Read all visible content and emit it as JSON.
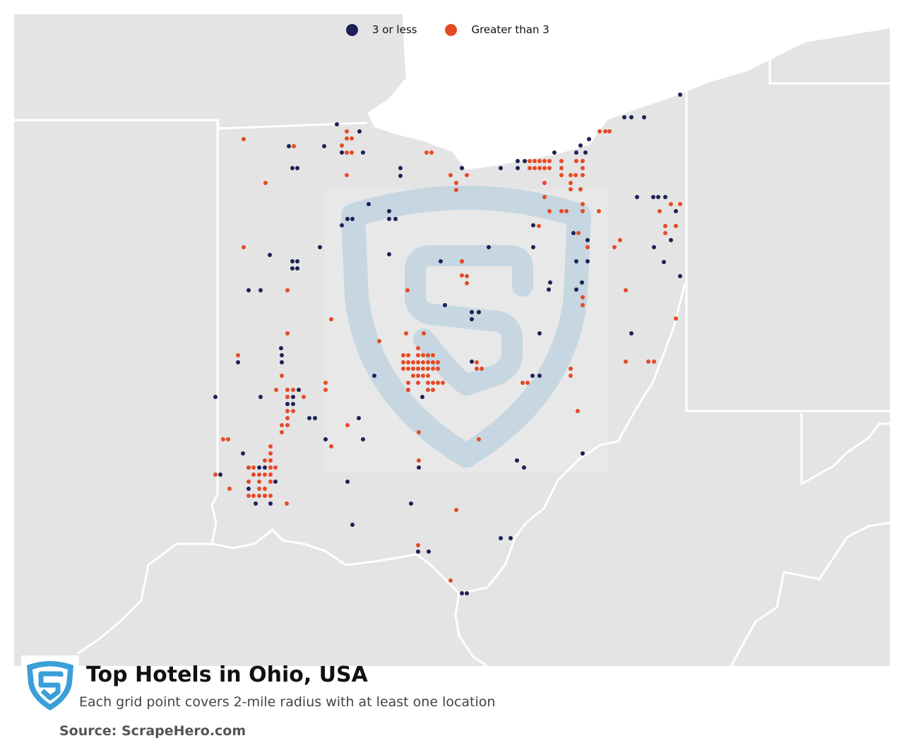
{
  "map": {
    "title": "Top Hotels in Ohio, USA",
    "subtitle": "Each grid point covers 2-mile radius with at least one location",
    "source": "Source: ScrapeHero.com"
  },
  "legend": [
    {
      "label": "3 or less",
      "color": "#1b2157"
    },
    {
      "label": "Greater than 3",
      "color": "#e64a25"
    }
  ],
  "colors": {
    "land": "#e4e4e4",
    "water": "#ffffff",
    "borders": "#ffffff",
    "watermark": "#a9c8dc",
    "logo": "#3a9fd8"
  },
  "icons": {
    "logo": "scrapehero-shield-icon",
    "watermark": "scrapehero-watermark-icon"
  },
  "points": {
    "low": [
      [
        409,
        207
      ],
      [
        459,
        207
      ],
      [
        477,
        176
      ],
      [
        509,
        186
      ],
      [
        514,
        216
      ],
      [
        484,
        216
      ],
      [
        414,
        238
      ],
      [
        421,
        238
      ],
      [
        567,
        238
      ],
      [
        567,
        249
      ],
      [
        654,
        238
      ],
      [
        709,
        238
      ],
      [
        733,
        238
      ],
      [
        743,
        228
      ],
      [
        733,
        228
      ],
      [
        785,
        216
      ],
      [
        816,
        216
      ],
      [
        829,
        216
      ],
      [
        822,
        206
      ],
      [
        834,
        197
      ],
      [
        884,
        166
      ],
      [
        894,
        166
      ],
      [
        912,
        166
      ],
      [
        963,
        134
      ],
      [
        522,
        289
      ],
      [
        484,
        319
      ],
      [
        492,
        310
      ],
      [
        499,
        310
      ],
      [
        551,
        299
      ],
      [
        551,
        310
      ],
      [
        560,
        310
      ],
      [
        902,
        279
      ],
      [
        925,
        279
      ],
      [
        932,
        279
      ],
      [
        942,
        279
      ],
      [
        957,
        299
      ],
      [
        950,
        340
      ],
      [
        926,
        350
      ],
      [
        940,
        371
      ],
      [
        963,
        391
      ],
      [
        382,
        361
      ],
      [
        414,
        370
      ],
      [
        421,
        370
      ],
      [
        414,
        380
      ],
      [
        421,
        380
      ],
      [
        453,
        350
      ],
      [
        551,
        360
      ],
      [
        624,
        370
      ],
      [
        654,
        370
      ],
      [
        692,
        350
      ],
      [
        755,
        350
      ],
      [
        755,
        319
      ],
      [
        812,
        330
      ],
      [
        832,
        340
      ],
      [
        832,
        370
      ],
      [
        816,
        370
      ],
      [
        824,
        400
      ],
      [
        816,
        410
      ],
      [
        779,
        400
      ],
      [
        777,
        410
      ],
      [
        630,
        432
      ],
      [
        668,
        442
      ],
      [
        678,
        442
      ],
      [
        668,
        452
      ],
      [
        764,
        472
      ],
      [
        894,
        472
      ],
      [
        352,
        411
      ],
      [
        369,
        411
      ],
      [
        398,
        493
      ],
      [
        399,
        503
      ],
      [
        399,
        513
      ],
      [
        337,
        513
      ],
      [
        369,
        562
      ],
      [
        423,
        552
      ],
      [
        415,
        562
      ],
      [
        407,
        572
      ],
      [
        415,
        572
      ],
      [
        438,
        592
      ],
      [
        446,
        592
      ],
      [
        305,
        562
      ],
      [
        530,
        532
      ],
      [
        578,
        552
      ],
      [
        598,
        562
      ],
      [
        668,
        512
      ],
      [
        754,
        532
      ],
      [
        764,
        532
      ],
      [
        508,
        592
      ],
      [
        514,
        622
      ],
      [
        461,
        622
      ],
      [
        344,
        642
      ],
      [
        352,
        662
      ],
      [
        367,
        662
      ],
      [
        375,
        662
      ],
      [
        312,
        672
      ],
      [
        352,
        692
      ],
      [
        390,
        682
      ],
      [
        375,
        702
      ],
      [
        383,
        713
      ],
      [
        492,
        682
      ],
      [
        582,
        713
      ],
      [
        732,
        652
      ],
      [
        742,
        662
      ],
      [
        825,
        642
      ],
      [
        593,
        662
      ],
      [
        499,
        743
      ],
      [
        709,
        762
      ],
      [
        723,
        762
      ],
      [
        592,
        781
      ],
      [
        607,
        781
      ],
      [
        654,
        840
      ],
      [
        661,
        840
      ],
      [
        362,
        713
      ]
    ],
    "high": [
      [
        345,
        197
      ],
      [
        416,
        207
      ],
      [
        491,
        186
      ],
      [
        491,
        196
      ],
      [
        498,
        196
      ],
      [
        484,
        206
      ],
      [
        491,
        216
      ],
      [
        498,
        216
      ],
      [
        491,
        248
      ],
      [
        376,
        259
      ],
      [
        604,
        216
      ],
      [
        611,
        216
      ],
      [
        638,
        248
      ],
      [
        646,
        259
      ],
      [
        646,
        269
      ],
      [
        661,
        248
      ],
      [
        750,
        228
      ],
      [
        757,
        228
      ],
      [
        764,
        228
      ],
      [
        771,
        228
      ],
      [
        778,
        228
      ],
      [
        750,
        238
      ],
      [
        757,
        238
      ],
      [
        764,
        238
      ],
      [
        771,
        238
      ],
      [
        778,
        238
      ],
      [
        795,
        228
      ],
      [
        795,
        238
      ],
      [
        795,
        248
      ],
      [
        808,
        248
      ],
      [
        815,
        248
      ],
      [
        825,
        248
      ],
      [
        816,
        228
      ],
      [
        825,
        228
      ],
      [
        825,
        238
      ],
      [
        808,
        259
      ],
      [
        771,
        259
      ],
      [
        822,
        268
      ],
      [
        808,
        268
      ],
      [
        771,
        279
      ],
      [
        778,
        299
      ],
      [
        795,
        299
      ],
      [
        802,
        299
      ],
      [
        825,
        289
      ],
      [
        825,
        299
      ],
      [
        848,
        299
      ],
      [
        857,
        186
      ],
      [
        849,
        186
      ],
      [
        863,
        186
      ],
      [
        934,
        299
      ],
      [
        950,
        289
      ],
      [
        963,
        289
      ],
      [
        942,
        320
      ],
      [
        957,
        320
      ],
      [
        942,
        330
      ],
      [
        878,
        340
      ],
      [
        870,
        350
      ],
      [
        832,
        350
      ],
      [
        819,
        330
      ],
      [
        763,
        320
      ],
      [
        345,
        350
      ],
      [
        407,
        411
      ],
      [
        577,
        411
      ],
      [
        654,
        370
      ],
      [
        661,
        391
      ],
      [
        661,
        401
      ],
      [
        825,
        421
      ],
      [
        825,
        432
      ],
      [
        886,
        411
      ],
      [
        469,
        452
      ],
      [
        407,
        472
      ],
      [
        575,
        472
      ],
      [
        600,
        472
      ],
      [
        537,
        483
      ],
      [
        592,
        493
      ],
      [
        337,
        503
      ],
      [
        571,
        503
      ],
      [
        578,
        503
      ],
      [
        592,
        503
      ],
      [
        599,
        503
      ],
      [
        606,
        503
      ],
      [
        613,
        503
      ],
      [
        399,
        532
      ],
      [
        571,
        513
      ],
      [
        578,
        513
      ],
      [
        585,
        513
      ],
      [
        592,
        513
      ],
      [
        599,
        513
      ],
      [
        606,
        513
      ],
      [
        613,
        513
      ],
      [
        620,
        513
      ],
      [
        571,
        522
      ],
      [
        578,
        522
      ],
      [
        585,
        522
      ],
      [
        592,
        522
      ],
      [
        599,
        522
      ],
      [
        606,
        522
      ],
      [
        613,
        522
      ],
      [
        620,
        522
      ],
      [
        585,
        532
      ],
      [
        592,
        532
      ],
      [
        599,
        532
      ],
      [
        606,
        532
      ],
      [
        578,
        542
      ],
      [
        592,
        542
      ],
      [
        606,
        542
      ],
      [
        613,
        542
      ],
      [
        620,
        542
      ],
      [
        627,
        542
      ],
      [
        578,
        552
      ],
      [
        606,
        552
      ],
      [
        613,
        552
      ],
      [
        675,
        513
      ],
      [
        675,
        522
      ],
      [
        682,
        522
      ],
      [
        808,
        522
      ],
      [
        808,
        532
      ],
      [
        740,
        542
      ],
      [
        747,
        542
      ],
      [
        461,
        542
      ],
      [
        461,
        552
      ],
      [
        391,
        552
      ],
      [
        407,
        552
      ],
      [
        415,
        552
      ],
      [
        407,
        562
      ],
      [
        430,
        562
      ],
      [
        407,
        582
      ],
      [
        415,
        582
      ],
      [
        407,
        592
      ],
      [
        399,
        602
      ],
      [
        407,
        602
      ],
      [
        399,
        612
      ],
      [
        818,
        582
      ],
      [
        492,
        602
      ],
      [
        316,
        622
      ],
      [
        323,
        622
      ],
      [
        469,
        632
      ],
      [
        593,
        612
      ],
      [
        678,
        622
      ],
      [
        383,
        632
      ],
      [
        383,
        642
      ],
      [
        375,
        652
      ],
      [
        383,
        652
      ],
      [
        352,
        662
      ],
      [
        359,
        662
      ],
      [
        383,
        662
      ],
      [
        390,
        662
      ],
      [
        359,
        672
      ],
      [
        367,
        672
      ],
      [
        375,
        672
      ],
      [
        383,
        672
      ],
      [
        305,
        672
      ],
      [
        352,
        682
      ],
      [
        367,
        682
      ],
      [
        383,
        682
      ],
      [
        367,
        692
      ],
      [
        375,
        692
      ],
      [
        325,
        692
      ],
      [
        352,
        702
      ],
      [
        359,
        702
      ],
      [
        367,
        702
      ],
      [
        375,
        702
      ],
      [
        383,
        702
      ],
      [
        406,
        713
      ],
      [
        593,
        652
      ],
      [
        646,
        722
      ],
      [
        592,
        772
      ],
      [
        638,
        822
      ],
      [
        886,
        512
      ],
      [
        918,
        512
      ],
      [
        926,
        512
      ],
      [
        957,
        451
      ],
      [
        654,
        390
      ]
    ]
  }
}
